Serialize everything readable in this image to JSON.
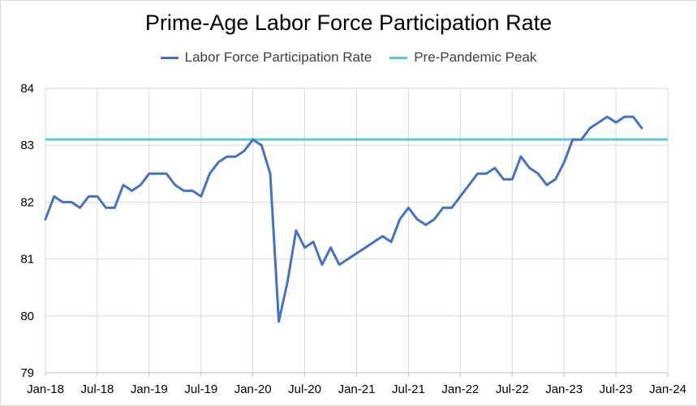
{
  "chart_data": {
    "type": "line",
    "title": "Prime-Age Labor Force Participation Rate",
    "xlabel": "",
    "ylabel": "",
    "ylim": [
      79,
      84
    ],
    "y_ticks": [
      "79",
      "80",
      "81",
      "82",
      "83",
      "84"
    ],
    "x_ticks": [
      "Jan-18",
      "Jul-18",
      "Jan-19",
      "Jul-19",
      "Jan-20",
      "Jul-20",
      "Jan-21",
      "Jul-21",
      "Jan-22",
      "Jul-22",
      "Jan-23",
      "Jul-23",
      "Jan-24"
    ],
    "x_range": [
      "2018-01",
      "2024-01"
    ],
    "grid": true,
    "legend_position": "top",
    "series": [
      {
        "name": "Labor Force Participation Rate",
        "color": "#4472c4",
        "x": [
          "2018-01",
          "2018-02",
          "2018-03",
          "2018-04",
          "2018-05",
          "2018-06",
          "2018-07",
          "2018-08",
          "2018-09",
          "2018-10",
          "2018-11",
          "2018-12",
          "2019-01",
          "2019-02",
          "2019-03",
          "2019-04",
          "2019-05",
          "2019-06",
          "2019-07",
          "2019-08",
          "2019-09",
          "2019-10",
          "2019-11",
          "2019-12",
          "2020-01",
          "2020-02",
          "2020-03",
          "2020-04",
          "2020-05",
          "2020-06",
          "2020-07",
          "2020-08",
          "2020-09",
          "2020-10",
          "2020-11",
          "2020-12",
          "2021-01",
          "2021-02",
          "2021-03",
          "2021-04",
          "2021-05",
          "2021-06",
          "2021-07",
          "2021-08",
          "2021-09",
          "2021-10",
          "2021-11",
          "2021-12",
          "2022-01",
          "2022-02",
          "2022-03",
          "2022-04",
          "2022-05",
          "2022-06",
          "2022-07",
          "2022-08",
          "2022-09",
          "2022-10",
          "2022-11",
          "2022-12",
          "2023-01",
          "2023-02",
          "2023-03",
          "2023-04",
          "2023-05",
          "2023-06",
          "2023-07",
          "2023-08",
          "2023-09",
          "2023-10"
        ],
        "values": [
          81.7,
          82.1,
          82.0,
          82.0,
          81.9,
          82.1,
          82.1,
          81.9,
          81.9,
          82.3,
          82.2,
          82.3,
          82.5,
          82.5,
          82.5,
          82.3,
          82.2,
          82.2,
          82.1,
          82.5,
          82.7,
          82.8,
          82.8,
          82.9,
          83.1,
          83.0,
          82.5,
          79.9,
          80.6,
          81.5,
          81.2,
          81.3,
          80.9,
          81.2,
          80.9,
          81.0,
          81.1,
          81.2,
          81.3,
          81.4,
          81.3,
          81.7,
          81.9,
          81.7,
          81.6,
          81.7,
          81.9,
          81.9,
          82.1,
          82.3,
          82.5,
          82.5,
          82.6,
          82.4,
          82.4,
          82.8,
          82.6,
          82.5,
          82.3,
          82.4,
          82.7,
          83.1,
          83.1,
          83.3,
          83.4,
          83.5,
          83.4,
          83.5,
          83.5,
          83.3
        ]
      },
      {
        "name": "Pre-Pandemic Peak",
        "color": "#5bc8d8",
        "value": 83.1
      }
    ]
  }
}
